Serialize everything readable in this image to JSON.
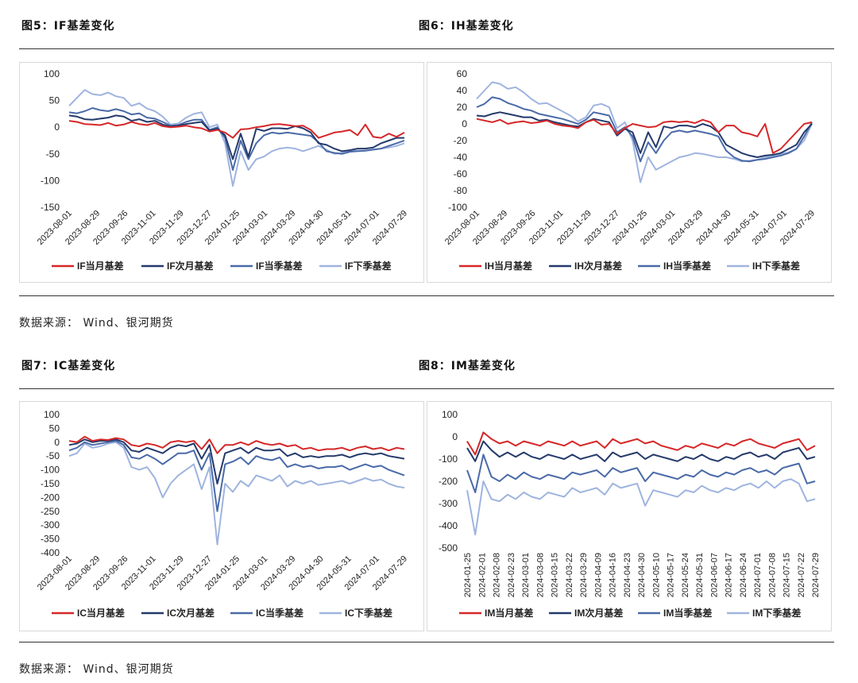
{
  "colors": {
    "current": "#d62728",
    "next": "#243a6b",
    "quarter": "#4a6aa8",
    "nextq": "#9fb4df"
  },
  "section1": {
    "fig5_title": "图5：IF基差变化",
    "fig6_title": "图6：IH基差变化",
    "source": "数据来源： Wind、银河期货"
  },
  "section2": {
    "fig7_title": "图7：IC基差变化",
    "fig8_title": "图8：IM基差变化",
    "source": "数据来源： Wind、银河期货"
  },
  "chart_data": [
    {
      "id": "IF",
      "type": "line",
      "ylim": [
        -150,
        100
      ],
      "yticks": [
        100,
        50,
        0,
        -50,
        -100,
        -150
      ],
      "x_ticks": [
        "2023-08-01",
        "2023-08-29",
        "2023-09-26",
        "2023-11-01",
        "2023-11-29",
        "2023-12-27",
        "2024-01-25",
        "2024-03-01",
        "2024-03-29",
        "2024-04-30",
        "2024-05-31",
        "2024-07-01",
        "2024-07-29"
      ],
      "series": [
        {
          "name": "IF当月基差",
          "key": "current",
          "values": [
            12,
            10,
            6,
            5,
            4,
            8,
            3,
            5,
            10,
            6,
            4,
            8,
            2,
            0,
            1,
            3,
            0,
            -2,
            -8,
            -5,
            -10,
            -20,
            -4,
            -3,
            0,
            2,
            5,
            6,
            4,
            2,
            3,
            -5,
            -20,
            -15,
            -10,
            -8,
            -5,
            -15,
            5,
            -18,
            -20,
            -12,
            -18,
            -10
          ]
        },
        {
          "name": "IF次月基差",
          "key": "next",
          "values": [
            22,
            20,
            15,
            14,
            16,
            18,
            22,
            20,
            12,
            15,
            10,
            12,
            5,
            1,
            3,
            6,
            8,
            10,
            -6,
            -3,
            -15,
            -60,
            -12,
            -55,
            -3,
            -7,
            -2,
            -2,
            -3,
            2,
            -2,
            -10,
            -30,
            -33,
            -40,
            -45,
            -43,
            -40,
            -40,
            -38,
            -30,
            -25,
            -20,
            -20
          ]
        },
        {
          "name": "IF当季基差",
          "key": "quarter",
          "values": [
            28,
            26,
            30,
            36,
            32,
            30,
            34,
            30,
            24,
            26,
            18,
            16,
            10,
            3,
            4,
            10,
            14,
            14,
            -5,
            0,
            -20,
            -80,
            -25,
            -60,
            -30,
            -15,
            -10,
            -12,
            -10,
            -12,
            -14,
            -16,
            -28,
            -45,
            -48,
            -50,
            -46,
            -45,
            -44,
            -42,
            -40,
            -35,
            -30,
            -25
          ]
        },
        {
          "name": "IF下季基差",
          "key": "nextq",
          "values": [
            40,
            55,
            70,
            62,
            60,
            65,
            58,
            55,
            40,
            45,
            35,
            30,
            20,
            5,
            7,
            18,
            25,
            28,
            0,
            5,
            -30,
            -110,
            -45,
            -80,
            -60,
            -55,
            -45,
            -40,
            -38,
            -40,
            -45,
            -40,
            -35,
            -42,
            -50,
            -48,
            -45,
            -44,
            -44,
            -42,
            -40,
            -38,
            -35,
            -30
          ]
        }
      ],
      "legend": [
        "IF当月基差",
        "IF次月基差",
        "IF当季基差",
        "IF下季基差"
      ]
    },
    {
      "id": "IH",
      "type": "line",
      "ylim": [
        -100,
        60
      ],
      "yticks": [
        60,
        40,
        20,
        0,
        -20,
        -40,
        -60,
        -80,
        -100
      ],
      "x_ticks": [
        "2023-08-01",
        "2023-08-29",
        "2023-09-26",
        "2023-11-01",
        "2023-11-29",
        "2023-12-27",
        "2024-01-25",
        "2024-03-01",
        "2024-03-29",
        "2024-04-30",
        "2024-05-31",
        "2024-07-01",
        "2024-07-29"
      ],
      "series": [
        {
          "name": "IH当月基差",
          "key": "current",
          "values": [
            6,
            4,
            2,
            5,
            0,
            2,
            3,
            1,
            2,
            4,
            0,
            -2,
            -3,
            -5,
            2,
            5,
            -1,
            0,
            -12,
            -5,
            0,
            -2,
            -4,
            -3,
            2,
            3,
            2,
            3,
            1,
            5,
            2,
            -10,
            -2,
            -2,
            -10,
            -12,
            -15,
            0,
            -35,
            -30,
            -20,
            -10,
            0,
            2
          ]
        },
        {
          "name": "IH次月基差",
          "key": "next",
          "values": [
            10,
            9,
            12,
            14,
            12,
            10,
            8,
            8,
            4,
            5,
            2,
            0,
            -2,
            -3,
            2,
            6,
            4,
            2,
            -14,
            -6,
            -10,
            -35,
            -10,
            -28,
            -3,
            -5,
            -2,
            -2,
            -4,
            0,
            -3,
            -10,
            -25,
            -30,
            -35,
            -38,
            -40,
            -38,
            -37,
            -35,
            -30,
            -25,
            -10,
            0
          ]
        },
        {
          "name": "IH当季基差",
          "key": "quarter",
          "values": [
            20,
            24,
            32,
            30,
            25,
            22,
            18,
            16,
            12,
            10,
            8,
            6,
            3,
            0,
            5,
            14,
            12,
            10,
            -10,
            -4,
            -15,
            -45,
            -22,
            -35,
            -20,
            -10,
            -8,
            -10,
            -8,
            -10,
            -12,
            -15,
            -32,
            -40,
            -44,
            -45,
            -43,
            -42,
            -40,
            -38,
            -35,
            -30,
            -15,
            2
          ]
        },
        {
          "name": "IH下季基差",
          "key": "nextq",
          "values": [
            30,
            40,
            50,
            48,
            42,
            44,
            38,
            30,
            24,
            25,
            20,
            15,
            10,
            3,
            8,
            22,
            24,
            20,
            -5,
            2,
            -20,
            -70,
            -40,
            -55,
            -50,
            -45,
            -40,
            -38,
            -35,
            -36,
            -38,
            -40,
            -40,
            -42,
            -45,
            -44,
            -43,
            -40,
            -38,
            -36,
            -34,
            -30,
            -20,
            0
          ]
        }
      ],
      "legend": [
        "IH当月基差",
        "IH次月基差",
        "IH当季基差",
        "IH下季基差"
      ]
    },
    {
      "id": "IC",
      "type": "line",
      "ylim": [
        -400,
        100
      ],
      "yticks": [
        100,
        50,
        0,
        -50,
        -100,
        -150,
        -200,
        -250,
        -300,
        -350,
        -400
      ],
      "x_ticks": [
        "2023-08-01",
        "2023-08-29",
        "2023-09-26",
        "2023-11-01",
        "2023-11-29",
        "2023-12-27",
        "2024-01-25",
        "2024-03-01",
        "2024-03-29",
        "2024-04-30",
        "2024-05-31",
        "2024-07-01",
        "2024-07-29"
      ],
      "series": [
        {
          "name": "IC当月基差",
          "key": "current",
          "values": [
            5,
            0,
            20,
            5,
            10,
            8,
            15,
            10,
            -10,
            -15,
            -5,
            -10,
            -20,
            0,
            5,
            0,
            5,
            -25,
            10,
            -40,
            -10,
            -10,
            0,
            -10,
            5,
            -5,
            -10,
            -5,
            -15,
            -10,
            -25,
            -20,
            -30,
            -25,
            -25,
            -20,
            -30,
            -20,
            -15,
            -25,
            -20,
            -30,
            -20,
            -25
          ]
        },
        {
          "name": "IC次月基差",
          "key": "next",
          "values": [
            -10,
            -5,
            10,
            0,
            5,
            5,
            10,
            0,
            -30,
            -35,
            -20,
            -30,
            -40,
            -20,
            -10,
            -15,
            -5,
            -60,
            -10,
            -150,
            -40,
            -30,
            -20,
            -40,
            -20,
            -30,
            -30,
            -25,
            -50,
            -40,
            -55,
            -50,
            -55,
            -50,
            -50,
            -45,
            -55,
            -45,
            -40,
            -45,
            -40,
            -50,
            -55,
            -60
          ]
        },
        {
          "name": "IC当季基差",
          "key": "quarter",
          "values": [
            -30,
            -20,
            0,
            -10,
            -5,
            0,
            5,
            -10,
            -55,
            -60,
            -45,
            -60,
            -80,
            -60,
            -40,
            -40,
            -30,
            -100,
            -40,
            -250,
            -80,
            -70,
            -55,
            -80,
            -50,
            -60,
            -65,
            -55,
            -90,
            -80,
            -90,
            -85,
            -95,
            -90,
            -90,
            -85,
            -100,
            -90,
            -80,
            -90,
            -85,
            -100,
            -110,
            -120
          ]
        },
        {
          "name": "IC下季基差",
          "key": "nextq",
          "values": [
            -50,
            -40,
            -5,
            -20,
            -15,
            -5,
            0,
            -20,
            -90,
            -100,
            -90,
            -130,
            -200,
            -150,
            -120,
            -100,
            -80,
            -170,
            -90,
            -370,
            -150,
            -180,
            -140,
            -160,
            -120,
            -130,
            -140,
            -120,
            -160,
            -140,
            -150,
            -140,
            -155,
            -150,
            -145,
            -140,
            -150,
            -140,
            -130,
            -140,
            -135,
            -150,
            -160,
            -165
          ]
        }
      ],
      "legend": [
        "IC当月基差",
        "IC次月基差",
        "IC当季基差",
        "IC下季基差"
      ]
    },
    {
      "id": "IM",
      "type": "line",
      "ylim": [
        -500,
        100
      ],
      "yticks": [
        100,
        0,
        -100,
        -200,
        -300,
        -400,
        -500
      ],
      "x_ticks": [
        "2024-01-25",
        "2024-02-01",
        "2024-02-08",
        "2024-02-23",
        "2024-03-01",
        "2024-03-08",
        "2024-03-15",
        "2024-03-22",
        "2024-03-29",
        "2024-04-09",
        "2024-04-16",
        "2024-04-23",
        "2024-04-30",
        "2024-05-10",
        "2024-05-17",
        "2024-05-24",
        "2024-05-31",
        "2024-06-07",
        "2024-06-17",
        "2024-06-24",
        "2024-07-01",
        "2024-07-08",
        "2024-07-15",
        "2024-07-22",
        "2024-07-29"
      ],
      "series": [
        {
          "name": "IM当月基差",
          "key": "current",
          "values": [
            -20,
            -80,
            20,
            -10,
            -30,
            -20,
            -40,
            -20,
            -30,
            -40,
            -20,
            -30,
            -40,
            -20,
            -40,
            -30,
            -20,
            -50,
            -10,
            -30,
            -20,
            -10,
            -30,
            -20,
            -40,
            -50,
            -60,
            -40,
            -50,
            -30,
            -40,
            -50,
            -30,
            -40,
            -20,
            -10,
            -30,
            -40,
            -50,
            -30,
            -20,
            -10,
            -60,
            -40
          ]
        },
        {
          "name": "IM次月基差",
          "key": "next",
          "values": [
            -50,
            -110,
            -20,
            -60,
            -90,
            -70,
            -90,
            -70,
            -90,
            -100,
            -80,
            -90,
            -100,
            -80,
            -100,
            -90,
            -80,
            -110,
            -70,
            -90,
            -80,
            -70,
            -100,
            -80,
            -90,
            -100,
            -110,
            -90,
            -100,
            -80,
            -100,
            -110,
            -90,
            -100,
            -80,
            -70,
            -90,
            -80,
            -100,
            -70,
            -60,
            -50,
            -100,
            -90
          ]
        },
        {
          "name": "IM当季基差",
          "key": "quarter",
          "values": [
            -150,
            -250,
            -80,
            -180,
            -200,
            -170,
            -190,
            -160,
            -180,
            -190,
            -170,
            -180,
            -190,
            -160,
            -170,
            -160,
            -150,
            -180,
            -140,
            -160,
            -150,
            -140,
            -200,
            -160,
            -170,
            -180,
            -190,
            -170,
            -180,
            -150,
            -170,
            -180,
            -160,
            -170,
            -150,
            -140,
            -160,
            -150,
            -170,
            -140,
            -130,
            -120,
            -210,
            -200
          ]
        },
        {
          "name": "IM下季基差",
          "key": "nextq",
          "values": [
            -240,
            -440,
            -200,
            -280,
            -290,
            -260,
            -280,
            -250,
            -270,
            -280,
            -250,
            -260,
            -270,
            -230,
            -250,
            -240,
            -230,
            -260,
            -210,
            -230,
            -220,
            -210,
            -310,
            -240,
            -250,
            -260,
            -270,
            -240,
            -250,
            -220,
            -240,
            -250,
            -230,
            -240,
            -220,
            -210,
            -230,
            -200,
            -230,
            -200,
            -190,
            -210,
            -290,
            -280
          ]
        }
      ],
      "legend": [
        "IM当月基差",
        "IM次月基差",
        "IM当季基差",
        "IM下季基差"
      ]
    }
  ]
}
